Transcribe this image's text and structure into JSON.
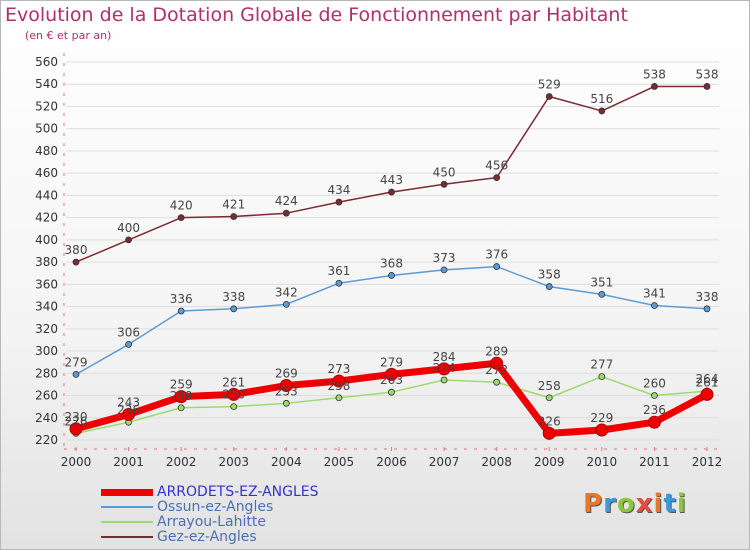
{
  "header": {
    "title": "Evolution de la Dotation Globale de Fonctionnement par Habitant",
    "subtitle": "(en € et par an)"
  },
  "logo": {
    "text": "Proxiti",
    "colors": [
      "#e8762c",
      "#3a9ad9",
      "#8cc63f",
      "#e84c3d"
    ]
  },
  "colors": {
    "title": "#b03068",
    "axis": "#e57272",
    "grid": "#dddddd"
  },
  "chart_data": {
    "type": "line",
    "x": [
      "2000",
      "2001",
      "2002",
      "2003",
      "2004",
      "2005",
      "2006",
      "2007",
      "2008",
      "2009",
      "2010",
      "2011",
      "2012"
    ],
    "ylim": [
      220,
      560
    ],
    "yticks": [
      220,
      240,
      260,
      280,
      300,
      320,
      340,
      360,
      380,
      400,
      420,
      440,
      460,
      480,
      500,
      520,
      540,
      560
    ],
    "grid": true,
    "legend_position": "bottom-left",
    "series": [
      {
        "name": "ARRODETS-EZ-ANGLES",
        "color": "#ee0000",
        "width": 7,
        "values": [
          230,
          243,
          259,
          261,
          269,
          273,
          279,
          284,
          289,
          226,
          229,
          236,
          261
        ]
      },
      {
        "name": "Ossun-ez-Angles",
        "color": "#5b9bd5",
        "width": 1.5,
        "values": [
          279,
          306,
          336,
          338,
          342,
          361,
          368,
          373,
          376,
          358,
          351,
          341,
          338
        ]
      },
      {
        "name": "Arrayou-Lahitte",
        "color": "#9bdb6e",
        "width": 1.5,
        "values": [
          226,
          236,
          249,
          250,
          253,
          258,
          263,
          274,
          272,
          258,
          277,
          260,
          264
        ]
      },
      {
        "name": "Gez-ez-Angles",
        "color": "#7a2a30",
        "width": 1.5,
        "values": [
          380,
          400,
          420,
          421,
          424,
          434,
          443,
          450,
          456,
          529,
          516,
          538,
          538
        ]
      }
    ]
  }
}
